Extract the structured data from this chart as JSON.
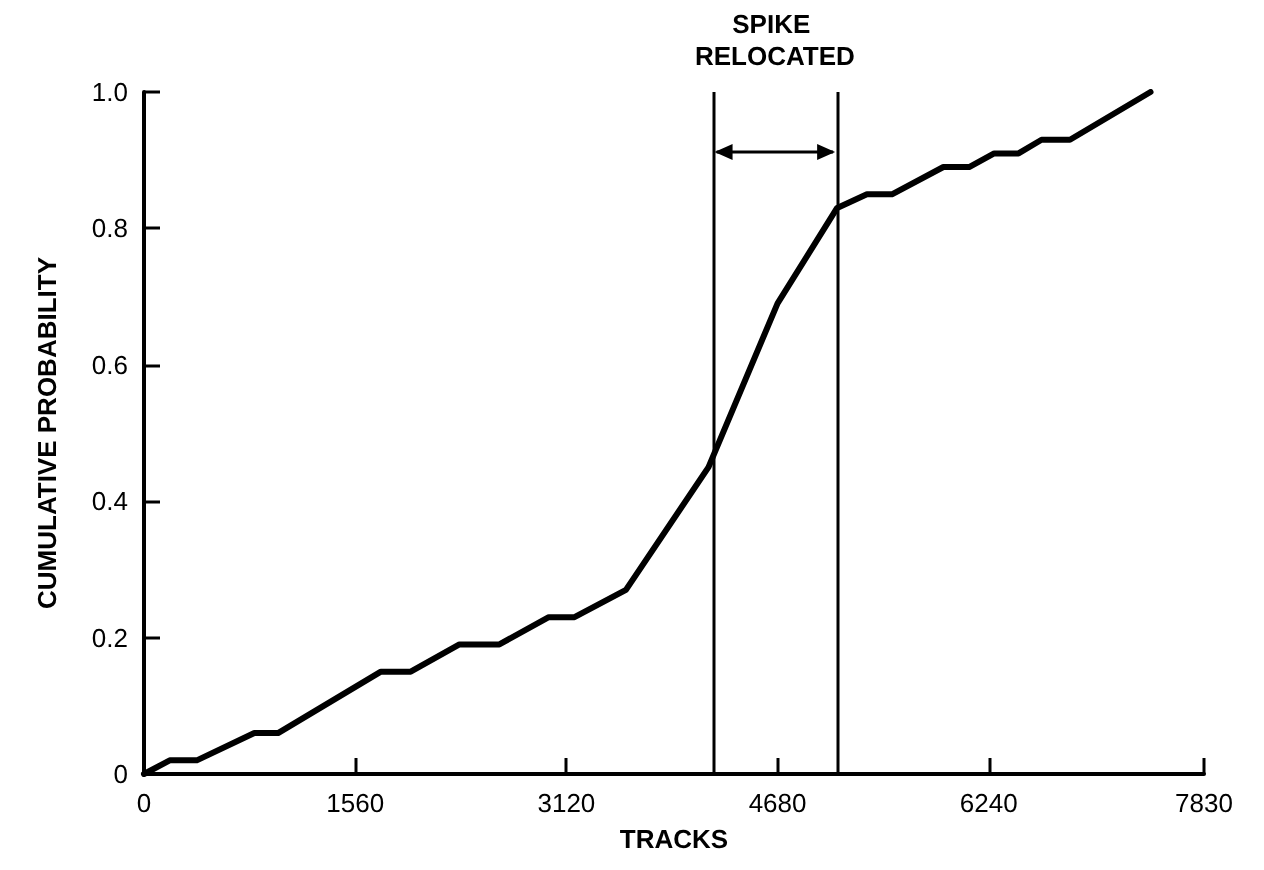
{
  "chart_data": {
    "type": "line",
    "xlabel": "TRACKS",
    "ylabel": "CUMULATIVE PROBABILITY",
    "x": [
      0,
      190,
      390,
      815,
      990,
      1750,
      1970,
      2330,
      2625,
      2990,
      3180,
      3560,
      4170,
      4680,
      5120,
      5340,
      5525,
      5905,
      6095,
      6280,
      6460,
      6630,
      6840,
      7435
    ],
    "series": [
      {
        "color": "#000000",
        "values": [
          0,
          0.02,
          0.02,
          0.06,
          0.06,
          0.15,
          0.15,
          0.19,
          0.19,
          0.23,
          0.23,
          0.27,
          0.45,
          0.69,
          0.83,
          0.85,
          0.85,
          0.89,
          0.89,
          0.91,
          0.91,
          0.93,
          0.93,
          1.0
        ]
      }
    ],
    "xlim": [
      0,
      7830
    ],
    "xticks": [
      0,
      1560,
      3120,
      4680,
      6240,
      7830
    ],
    "ylim": [
      0,
      1
    ],
    "yticks": [
      0,
      {
        "value": 0.2,
        "label": "0.2"
      },
      {
        "value": 0.4,
        "label": "0.4"
      },
      {
        "value": 0.6,
        "label": "0.6"
      },
      {
        "value": 0.8,
        "label": "0.8"
      },
      {
        "value": 1,
        "label": "1.0"
      }
    ],
    "ref_lines": [
      {
        "axis": "x",
        "value": 4200
      },
      {
        "axis": "x",
        "value": 5120
      }
    ],
    "annotations": [
      "SPIKE RELOCATED"
    ],
    "grid": false,
    "marker": "none",
    "line_style": "solid"
  }
}
